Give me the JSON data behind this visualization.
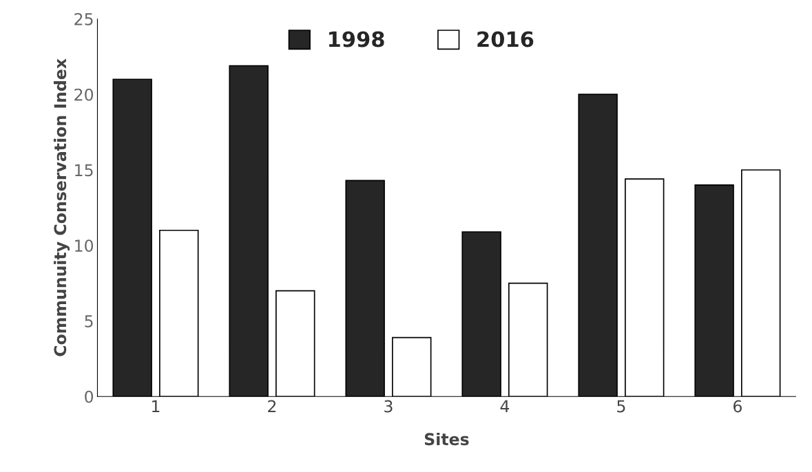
{
  "chart_data": {
    "type": "bar",
    "xlabel": "Sites",
    "ylabel": "Communuity Conservation Index",
    "categories": [
      "1",
      "2",
      "3",
      "4",
      "5",
      "6"
    ],
    "series": [
      {
        "name": "1998",
        "color": "#262626",
        "values": [
          21.0,
          21.9,
          14.3,
          10.9,
          20.0,
          14.0
        ]
      },
      {
        "name": "2016",
        "color": "#ffffff",
        "values": [
          11.0,
          7.0,
          3.9,
          7.5,
          14.4,
          15.0
        ]
      }
    ],
    "ylim": [
      0,
      25
    ],
    "yticks": [
      0,
      5,
      10,
      15,
      20,
      25
    ],
    "grid": false,
    "legend": "top"
  }
}
